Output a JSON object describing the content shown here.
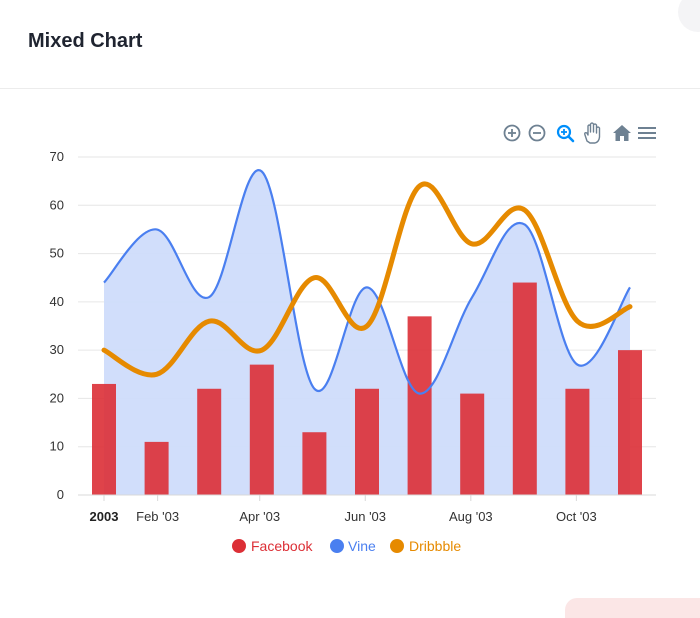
{
  "card": {
    "title": "Mixed Chart"
  },
  "toolbar": [
    "zoom-in-icon",
    "zoom-out-icon",
    "zoom-select-icon",
    "pan-hand-icon",
    "home-icon",
    "menu-icon"
  ],
  "chart_data": {
    "type": "mixed",
    "title": "",
    "xlabel": "",
    "ylabel": "",
    "x": [
      "2003-01-01",
      "2003-02-01",
      "2003-03-01",
      "2003-04-01",
      "2003-05-01",
      "2003-06-01",
      "2003-07-01",
      "2003-08-01",
      "2003-09-01",
      "2003-10-01",
      "2003-11-01"
    ],
    "x_tick_labels": [
      "2003",
      "Feb '03",
      "Apr '03",
      "Jun '03",
      "Aug '03",
      "Oct '03"
    ],
    "x_tick_dates": [
      "2003-01-01",
      "2003-02-01",
      "2003-04-01",
      "2003-06-01",
      "2003-08-01",
      "2003-10-01"
    ],
    "ylim": [
      0,
      70
    ],
    "yticks": [
      0,
      10,
      20,
      30,
      40,
      50,
      60,
      70
    ],
    "grid": true,
    "legend": "bottom-center",
    "series": [
      {
        "name": "Facebook",
        "type": "bar",
        "color": "#dc2f36",
        "values": [
          23,
          11,
          22,
          27,
          13,
          22,
          37,
          21,
          44,
          22,
          30
        ]
      },
      {
        "name": "Vine",
        "type": "area",
        "color": "#4a7ff0",
        "fill": "#cfdcfb",
        "values": [
          44,
          55,
          41,
          67,
          22,
          43,
          21,
          41,
          56,
          27,
          43
        ]
      },
      {
        "name": "Dribbble",
        "type": "line",
        "color": "#e68a00",
        "values": [
          30,
          25,
          36,
          30,
          45,
          35,
          64,
          52,
          59,
          36,
          39
        ]
      }
    ]
  }
}
